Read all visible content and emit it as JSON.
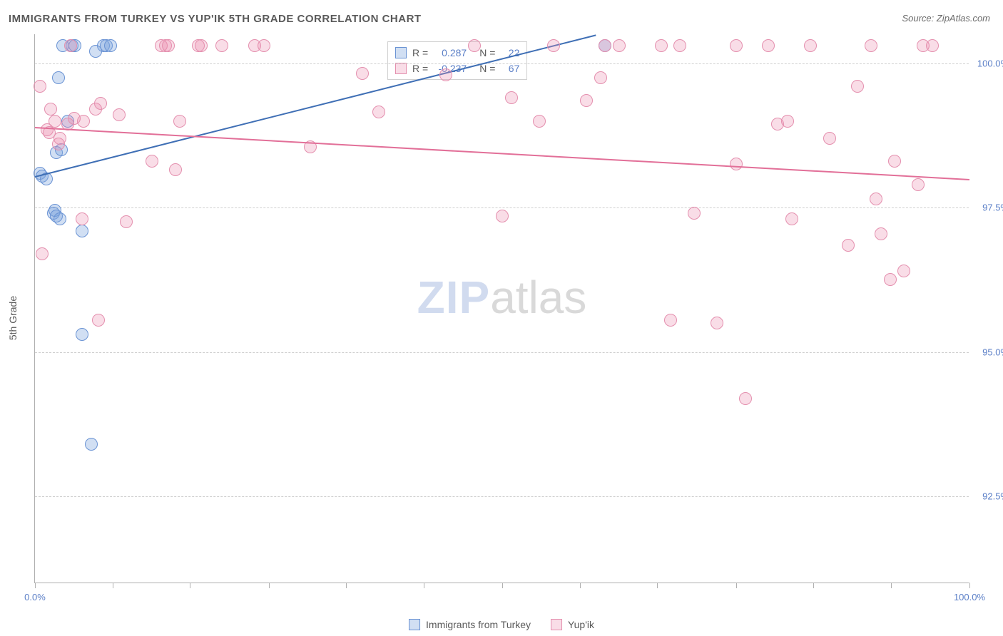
{
  "title": "IMMIGRANTS FROM TURKEY VS YUP'IK 5TH GRADE CORRELATION CHART",
  "source": "Source: ZipAtlas.com",
  "ylabel": "5th Grade",
  "watermark_a": "ZIP",
  "watermark_b": "atlas",
  "chart": {
    "type": "scatter",
    "xlim": [
      0,
      100
    ],
    "ylim": [
      91.0,
      100.5
    ],
    "background_color": "#ffffff",
    "grid_color": "#d0d0d0",
    "y_gridlines": [
      92.5,
      95.0,
      97.5,
      100.0
    ],
    "ytick_labels": [
      "92.5%",
      "95.0%",
      "97.5%",
      "100.0%"
    ],
    "xtick_positions": [
      0,
      8.3,
      16.6,
      25.0,
      33.3,
      41.6,
      50.0,
      58.3,
      66.6,
      75.0,
      83.3,
      91.6,
      100.0
    ],
    "xtick_labels": {
      "0": "0.0%",
      "100": "100.0%"
    },
    "point_radius": 9,
    "point_stroke_width": 1.2
  },
  "series": [
    {
      "name": "Immigrants from Turkey",
      "fill": "rgba(124,163,222,0.35)",
      "stroke": "#6a93d4",
      "trend_color": "#3f6fb5",
      "R": "0.287",
      "N": "22",
      "trend": {
        "x1": 0,
        "y1": 98.05,
        "x2": 60,
        "y2": 100.5
      },
      "points": [
        [
          0.5,
          98.1
        ],
        [
          0.8,
          98.05
        ],
        [
          1.2,
          98.0
        ],
        [
          2.0,
          97.4
        ],
        [
          2.1,
          97.45
        ],
        [
          2.3,
          97.35
        ],
        [
          2.3,
          98.45
        ],
        [
          2.8,
          98.5
        ],
        [
          2.5,
          99.75
        ],
        [
          4.0,
          100.3
        ],
        [
          4.3,
          100.3
        ],
        [
          3.5,
          99.0
        ],
        [
          3.0,
          100.3
        ],
        [
          7.3,
          100.3
        ],
        [
          7.6,
          100.3
        ],
        [
          8.1,
          100.3
        ],
        [
          5.0,
          97.1
        ],
        [
          2.7,
          97.3
        ],
        [
          6.0,
          93.4
        ],
        [
          5.0,
          95.3
        ],
        [
          61.0,
          100.3
        ],
        [
          6.5,
          100.2
        ]
      ]
    },
    {
      "name": "Yup'ik",
      "fill": "rgba(235,143,174,0.30)",
      "stroke": "#e48fae",
      "trend_color": "#e26f98",
      "R": "-0.237",
      "N": "67",
      "trend": {
        "x1": 0,
        "y1": 98.9,
        "x2": 100,
        "y2": 98.0
      },
      "points": [
        [
          0.5,
          99.6
        ],
        [
          0.8,
          96.7
        ],
        [
          1.3,
          98.85
        ],
        [
          1.5,
          98.8
        ],
        [
          1.7,
          99.2
        ],
        [
          2.1,
          99.0
        ],
        [
          2.5,
          98.6
        ],
        [
          2.7,
          98.7
        ],
        [
          3.5,
          98.95
        ],
        [
          3.8,
          100.3
        ],
        [
          4.2,
          99.05
        ],
        [
          5.2,
          99.0
        ],
        [
          5.0,
          97.3
        ],
        [
          6.8,
          95.55
        ],
        [
          6.5,
          99.2
        ],
        [
          7.0,
          99.3
        ],
        [
          9.0,
          99.1
        ],
        [
          9.8,
          97.25
        ],
        [
          12.5,
          98.3
        ],
        [
          13.5,
          100.3
        ],
        [
          14.0,
          100.3
        ],
        [
          14.3,
          100.3
        ],
        [
          15.0,
          98.15
        ],
        [
          15.5,
          99.0
        ],
        [
          17.5,
          100.3
        ],
        [
          17.8,
          100.3
        ],
        [
          20.0,
          100.3
        ],
        [
          23.5,
          100.3
        ],
        [
          24.5,
          100.3
        ],
        [
          29.5,
          98.55
        ],
        [
          35.0,
          99.82
        ],
        [
          36.8,
          99.15
        ],
        [
          44.0,
          99.8
        ],
        [
          47.0,
          100.3
        ],
        [
          50.0,
          97.35
        ],
        [
          51.0,
          99.4
        ],
        [
          54.0,
          99.0
        ],
        [
          55.5,
          100.3
        ],
        [
          59.0,
          99.35
        ],
        [
          60.5,
          99.75
        ],
        [
          61.0,
          100.3
        ],
        [
          62.5,
          100.3
        ],
        [
          67.0,
          100.3
        ],
        [
          68.0,
          95.55
        ],
        [
          69.0,
          100.3
        ],
        [
          70.5,
          97.4
        ],
        [
          73.0,
          95.5
        ],
        [
          75.0,
          100.3
        ],
        [
          75.0,
          98.25
        ],
        [
          76.0,
          94.2
        ],
        [
          78.5,
          100.3
        ],
        [
          79.5,
          98.95
        ],
        [
          80.5,
          99.0
        ],
        [
          81.0,
          97.3
        ],
        [
          83.0,
          100.3
        ],
        [
          85.0,
          98.7
        ],
        [
          87.0,
          96.85
        ],
        [
          88.0,
          99.6
        ],
        [
          89.5,
          100.3
        ],
        [
          90.0,
          97.65
        ],
        [
          90.5,
          97.05
        ],
        [
          91.5,
          96.25
        ],
        [
          92.0,
          98.3
        ],
        [
          93.0,
          96.4
        ],
        [
          94.5,
          97.9
        ],
        [
          95.0,
          100.3
        ],
        [
          96.0,
          100.3
        ]
      ]
    }
  ],
  "legend": {
    "items": [
      {
        "label": "Immigrants from Turkey",
        "fill": "rgba(124,163,222,0.35)",
        "stroke": "#6a93d4"
      },
      {
        "label": "Yup'ik",
        "fill": "rgba(235,143,174,0.30)",
        "stroke": "#e48fae"
      }
    ]
  }
}
